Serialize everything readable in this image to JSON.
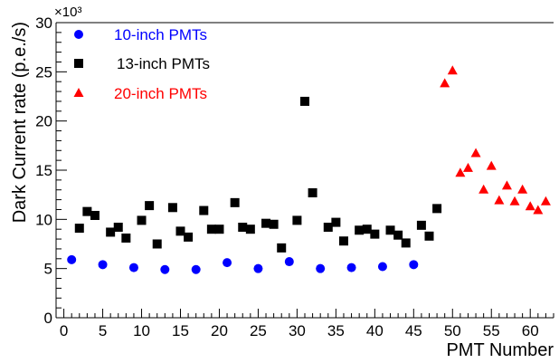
{
  "chart_data": {
    "type": "scatter",
    "title": "",
    "xlabel": "PMT Number",
    "ylabel": "Dark Current rate (p.e./s)",
    "y_multiplier_label": "×10³",
    "xlim": [
      -1,
      63
    ],
    "ylim": [
      0,
      30
    ],
    "x_ticks": [
      0,
      5,
      10,
      15,
      20,
      25,
      30,
      35,
      40,
      45,
      50,
      55,
      60
    ],
    "y_ticks": [
      0,
      5,
      10,
      15,
      20,
      25,
      30
    ],
    "grid": false,
    "legend_position": "top-left",
    "series": [
      {
        "name": "10-inch PMTs",
        "marker": "circle",
        "color": "#0000ff",
        "points": [
          [
            1,
            5.9
          ],
          [
            5,
            5.4
          ],
          [
            9,
            5.1
          ],
          [
            13,
            4.9
          ],
          [
            17,
            4.9
          ],
          [
            21,
            5.6
          ],
          [
            25,
            5.0
          ],
          [
            29,
            5.7
          ],
          [
            33,
            5.0
          ],
          [
            37,
            5.1
          ],
          [
            41,
            5.2
          ],
          [
            45,
            5.4
          ]
        ]
      },
      {
        "name": "13-inch PMTs",
        "marker": "square",
        "color": "#000000",
        "points": [
          [
            2,
            9.1
          ],
          [
            3,
            10.8
          ],
          [
            4,
            10.4
          ],
          [
            6,
            8.7
          ],
          [
            7,
            9.2
          ],
          [
            8,
            8.1
          ],
          [
            10,
            9.9
          ],
          [
            11,
            11.4
          ],
          [
            12,
            7.5
          ],
          [
            14,
            11.2
          ],
          [
            15,
            8.8
          ],
          [
            16,
            8.2
          ],
          [
            18,
            10.9
          ],
          [
            19,
            9.0
          ],
          [
            20,
            9.0
          ],
          [
            22,
            11.7
          ],
          [
            23,
            9.2
          ],
          [
            24,
            9.0
          ],
          [
            26,
            9.6
          ],
          [
            27,
            9.5
          ],
          [
            28,
            7.1
          ],
          [
            30,
            9.9
          ],
          [
            31,
            22.0
          ],
          [
            32,
            12.7
          ],
          [
            34,
            9.2
          ],
          [
            35,
            9.7
          ],
          [
            36,
            7.8
          ],
          [
            38,
            8.9
          ],
          [
            39,
            9.0
          ],
          [
            40,
            8.5
          ],
          [
            42,
            8.9
          ],
          [
            43,
            8.4
          ],
          [
            44,
            7.6
          ],
          [
            46,
            9.4
          ],
          [
            47,
            8.3
          ],
          [
            48,
            11.1
          ]
        ]
      },
      {
        "name": "20-inch PMTs",
        "marker": "triangle",
        "color": "#ff0000",
        "points": [
          [
            49,
            23.8
          ],
          [
            50,
            25.1
          ],
          [
            51,
            14.7
          ],
          [
            52,
            15.2
          ],
          [
            53,
            16.7
          ],
          [
            54,
            13.0
          ],
          [
            55,
            15.4
          ],
          [
            56,
            11.9
          ],
          [
            57,
            13.4
          ],
          [
            58,
            11.8
          ],
          [
            59,
            13.0
          ],
          [
            60,
            11.3
          ],
          [
            61,
            10.9
          ],
          [
            62,
            11.8
          ]
        ]
      }
    ]
  }
}
